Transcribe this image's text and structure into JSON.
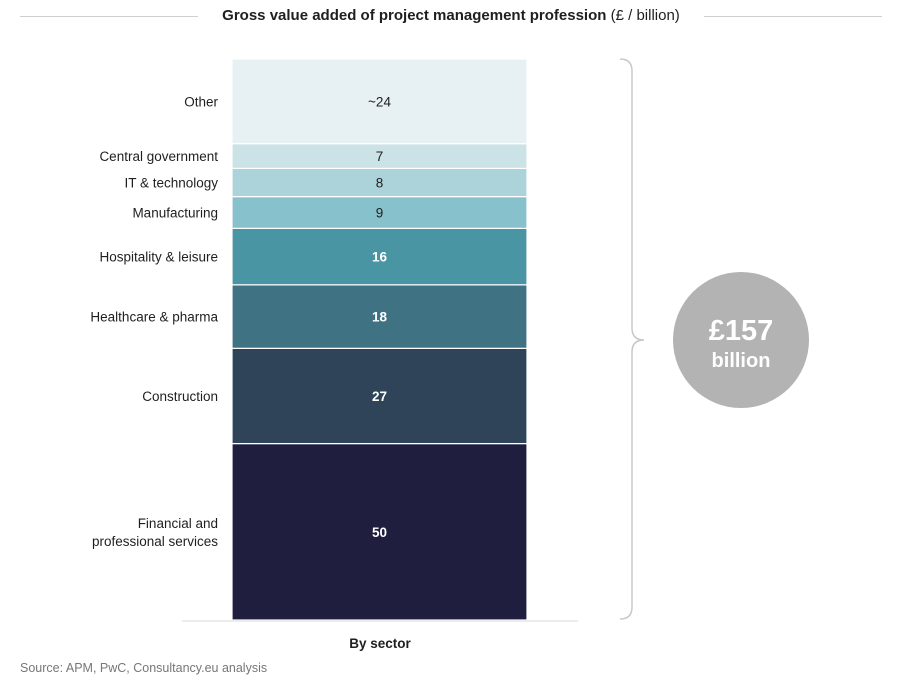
{
  "title": {
    "main": "Gross value added of project management profession",
    "unit": "(£ / billion)"
  },
  "chart_data": {
    "type": "bar",
    "stacked": true,
    "title": "Gross value added of project management profession (£ / billion)",
    "categories": [
      "By sector"
    ],
    "series": [
      {
        "name": "Financial and professional services",
        "values": [
          50
        ],
        "label": "50",
        "color": "#1f1e3f",
        "label_color": "#ffffff"
      },
      {
        "name": "Construction",
        "values": [
          27
        ],
        "label": "27",
        "color": "#2f4459",
        "label_color": "#ffffff"
      },
      {
        "name": "Healthcare & pharma",
        "values": [
          18
        ],
        "label": "18",
        "color": "#3f7283",
        "label_color": "#ffffff"
      },
      {
        "name": "Hospitality & leisure",
        "values": [
          16
        ],
        "label": "16",
        "color": "#4a95a3",
        "label_color": "#ffffff"
      },
      {
        "name": "Manufacturing",
        "values": [
          9
        ],
        "label": "9",
        "color": "#87c1cb",
        "label_color": "#1f1f1f"
      },
      {
        "name": "IT & technology",
        "values": [
          8
        ],
        "label": "8",
        "color": "#acd3da",
        "label_color": "#1f1f1f"
      },
      {
        "name": "Central government",
        "values": [
          7
        ],
        "label": "7",
        "color": "#cbe2e6",
        "label_color": "#1f1f1f"
      },
      {
        "name": "Other",
        "values": [
          24
        ],
        "label": "~24",
        "color": "#e7f1f3",
        "label_color": "#1f1f1f"
      }
    ],
    "total": {
      "line1": "£157",
      "line2": "billion",
      "color": "#b3b3b3"
    },
    "ylim": [
      0,
      159
    ],
    "grid": false,
    "legend": "left"
  },
  "source": "Source: APM, PwC, Consultancy.eu analysis"
}
